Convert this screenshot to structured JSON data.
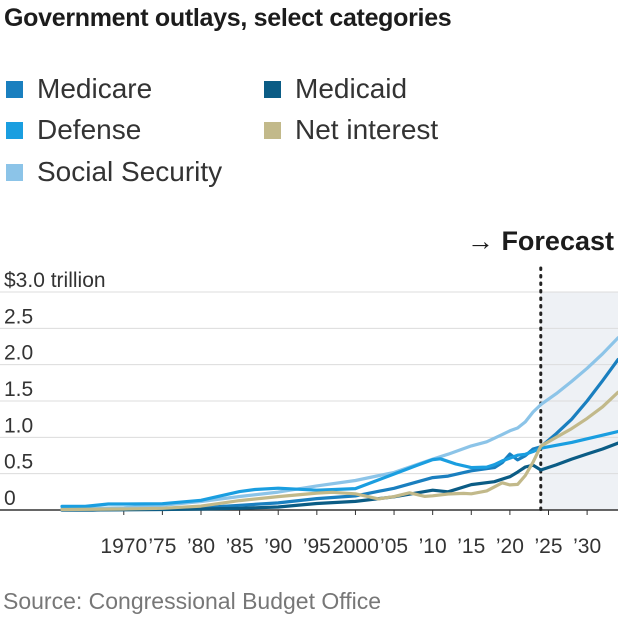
{
  "chart_data": {
    "type": "line",
    "title": "Government outlays, select categories",
    "source": "Source: Congressional Budget Office",
    "forecast_label": "→ Forecast",
    "forecast_start": 2024,
    "ylim": [
      0,
      3.0
    ],
    "xlim": [
      1962,
      2034
    ],
    "y_ticks": [
      {
        "value": 0,
        "label": "0"
      },
      {
        "value": 0.5,
        "label": "0.5"
      },
      {
        "value": 1.0,
        "label": "1.0"
      },
      {
        "value": 1.5,
        "label": "1.5"
      },
      {
        "value": 2.0,
        "label": "2.0"
      },
      {
        "value": 2.5,
        "label": "2.5"
      },
      {
        "value": 3.0,
        "label": "$3.0 trillion"
      }
    ],
    "x_ticks": [
      {
        "value": 1970,
        "label": "1970"
      },
      {
        "value": 1975,
        "label": "’75"
      },
      {
        "value": 1980,
        "label": "’80"
      },
      {
        "value": 1985,
        "label": "’85"
      },
      {
        "value": 1990,
        "label": "’90"
      },
      {
        "value": 1995,
        "label": "’95"
      },
      {
        "value": 2000,
        "label": "2000"
      },
      {
        "value": 2005,
        "label": "’05"
      },
      {
        "value": 2010,
        "label": "’10"
      },
      {
        "value": 2015,
        "label": "’15"
      },
      {
        "value": 2020,
        "label": "’20"
      },
      {
        "value": 2025,
        "label": "’25"
      },
      {
        "value": 2030,
        "label": "’30"
      }
    ],
    "grid": true,
    "legend_position": "top",
    "series": [
      {
        "name": "Social Security",
        "color": "#8cc4e8",
        "points": [
          [
            1962,
            0.014
          ],
          [
            1970,
            0.03
          ],
          [
            1975,
            0.064
          ],
          [
            1980,
            0.117
          ],
          [
            1985,
            0.186
          ],
          [
            1990,
            0.246
          ],
          [
            1995,
            0.331
          ],
          [
            2000,
            0.406
          ],
          [
            2005,
            0.518
          ],
          [
            2010,
            0.7
          ],
          [
            2012,
            0.768
          ],
          [
            2015,
            0.882
          ],
          [
            2017,
            0.939
          ],
          [
            2019,
            1.038
          ],
          [
            2020,
            1.09
          ],
          [
            2021,
            1.129
          ],
          [
            2022,
            1.212
          ],
          [
            2023,
            1.348
          ],
          [
            2024,
            1.45
          ],
          [
            2026,
            1.6
          ],
          [
            2028,
            1.77
          ],
          [
            2030,
            1.95
          ],
          [
            2032,
            2.15
          ],
          [
            2034,
            2.37
          ]
        ]
      },
      {
        "name": "Medicare",
        "color": "#1a7fbf",
        "points": [
          [
            1962,
            0
          ],
          [
            1966,
            0
          ],
          [
            1967,
            0.003
          ],
          [
            1970,
            0.007
          ],
          [
            1975,
            0.014
          ],
          [
            1980,
            0.032
          ],
          [
            1985,
            0.065
          ],
          [
            1990,
            0.098
          ],
          [
            1995,
            0.157
          ],
          [
            2000,
            0.194
          ],
          [
            2005,
            0.299
          ],
          [
            2010,
            0.446
          ],
          [
            2012,
            0.466
          ],
          [
            2015,
            0.54
          ],
          [
            2018,
            0.583
          ],
          [
            2019,
            0.651
          ],
          [
            2020,
            0.769
          ],
          [
            2021,
            0.689
          ],
          [
            2022,
            0.747
          ],
          [
            2023,
            0.839
          ],
          [
            2024,
            0.87
          ],
          [
            2026,
            1.05
          ],
          [
            2028,
            1.25
          ],
          [
            2030,
            1.5
          ],
          [
            2032,
            1.78
          ],
          [
            2034,
            2.07
          ]
        ]
      },
      {
        "name": "Medicaid",
        "color": "#0b5c85",
        "points": [
          [
            1962,
            0
          ],
          [
            1966,
            0
          ],
          [
            1967,
            0.001
          ],
          [
            1970,
            0.003
          ],
          [
            1975,
            0.007
          ],
          [
            1980,
            0.014
          ],
          [
            1985,
            0.023
          ],
          [
            1990,
            0.041
          ],
          [
            1995,
            0.089
          ],
          [
            2000,
            0.118
          ],
          [
            2005,
            0.182
          ],
          [
            2010,
            0.273
          ],
          [
            2012,
            0.251
          ],
          [
            2015,
            0.35
          ],
          [
            2018,
            0.389
          ],
          [
            2020,
            0.458
          ],
          [
            2021,
            0.521
          ],
          [
            2022,
            0.592
          ],
          [
            2023,
            0.616
          ],
          [
            2024,
            0.55
          ],
          [
            2026,
            0.62
          ],
          [
            2028,
            0.7
          ],
          [
            2030,
            0.77
          ],
          [
            2032,
            0.84
          ],
          [
            2034,
            0.92
          ]
        ]
      },
      {
        "name": "Defense",
        "color": "#1a9ee0",
        "points": [
          [
            1962,
            0.05
          ],
          [
            1965,
            0.05
          ],
          [
            1968,
            0.082
          ],
          [
            1970,
            0.082
          ],
          [
            1975,
            0.087
          ],
          [
            1980,
            0.134
          ],
          [
            1985,
            0.253
          ],
          [
            1987,
            0.282
          ],
          [
            1990,
            0.3
          ],
          [
            1995,
            0.272
          ],
          [
            2000,
            0.294
          ],
          [
            2005,
            0.495
          ],
          [
            2008,
            0.616
          ],
          [
            2010,
            0.693
          ],
          [
            2011,
            0.705
          ],
          [
            2013,
            0.633
          ],
          [
            2015,
            0.583
          ],
          [
            2017,
            0.59
          ],
          [
            2018,
            0.623
          ],
          [
            2019,
            0.676
          ],
          [
            2020,
            0.714
          ],
          [
            2021,
            0.754
          ],
          [
            2022,
            0.767
          ],
          [
            2023,
            0.805
          ],
          [
            2024,
            0.85
          ],
          [
            2026,
            0.89
          ],
          [
            2028,
            0.93
          ],
          [
            2030,
            0.98
          ],
          [
            2032,
            1.03
          ],
          [
            2034,
            1.08
          ]
        ]
      },
      {
        "name": "Net interest",
        "color": "#c2b98a",
        "points": [
          [
            1962,
            0.007
          ],
          [
            1970,
            0.014
          ],
          [
            1975,
            0.023
          ],
          [
            1980,
            0.053
          ],
          [
            1985,
            0.13
          ],
          [
            1990,
            0.184
          ],
          [
            1995,
            0.232
          ],
          [
            1997,
            0.244
          ],
          [
            2000,
            0.223
          ],
          [
            2003,
            0.153
          ],
          [
            2005,
            0.184
          ],
          [
            2007,
            0.237
          ],
          [
            2009,
            0.187
          ],
          [
            2010,
            0.196
          ],
          [
            2012,
            0.22
          ],
          [
            2014,
            0.229
          ],
          [
            2015,
            0.223
          ],
          [
            2017,
            0.263
          ],
          [
            2019,
            0.375
          ],
          [
            2020,
            0.345
          ],
          [
            2021,
            0.352
          ],
          [
            2022,
            0.475
          ],
          [
            2023,
            0.659
          ],
          [
            2024,
            0.88
          ],
          [
            2026,
            1.0
          ],
          [
            2028,
            1.12
          ],
          [
            2030,
            1.26
          ],
          [
            2032,
            1.42
          ],
          [
            2034,
            1.62
          ]
        ]
      }
    ]
  },
  "legend": {
    "items": [
      {
        "label": "Medicare",
        "color": "#1a7fbf"
      },
      {
        "label": "Medicaid",
        "color": "#0b5c85"
      },
      {
        "label": "Defense",
        "color": "#1a9ee0"
      },
      {
        "label": "Net interest",
        "color": "#c2b98a"
      },
      {
        "label": "Social Security",
        "color": "#8cc4e8"
      }
    ]
  }
}
